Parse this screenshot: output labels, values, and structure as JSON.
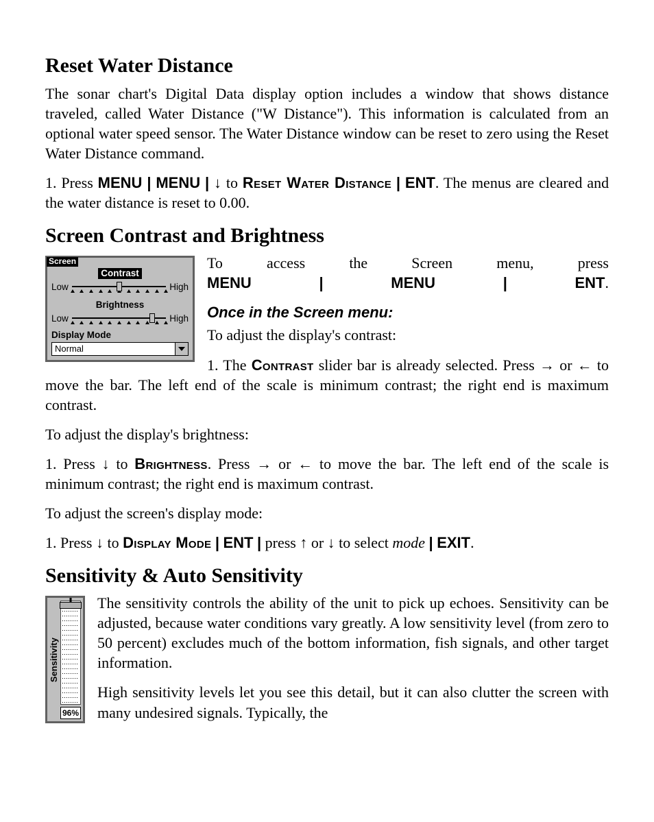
{
  "sec1": {
    "heading": "Reset Water Distance",
    "para1": "The sonar chart's Digital Data display option includes a window that shows distance traveled, called Water Distance (\"W Distance\"). This information is calculated from an optional water speed sensor. The Water Distance window can be reset to zero using the Reset Water Distance command.",
    "step1_pre": "1.  Press ",
    "menu": "MENU",
    "pipe": "|",
    "arrow_down": "↓",
    "to": " to ",
    "reset_wd": "Reset Water Distance",
    "ent": "ENT",
    "step1_post": ". The menus are cleared and the water distance is reset to 0.00."
  },
  "sec2": {
    "heading": "Screen Contrast and Brightness",
    "access_pre": "To access the Screen menu, press ",
    "period": ".",
    "once": "Once in the Screen menu:",
    "adj_contrast": "To adjust the display's contrast:",
    "c_step_a": "1. The ",
    "contrast_sc": "Contrast",
    "c_step_b": " slider bar is already selected. Press ",
    "arrow_right": "→",
    "or": " or ",
    "arrow_left": "←",
    "c_step_c": " to move the bar. The left end of the scale is minimum contrast; the right end is maximum contrast.",
    "adj_bright": "To adjust the display's brightness:",
    "b_step_a": "1. Press ",
    "b_step_to": " to ",
    "brightness_sc": "Brightness",
    "b_step_b": ". Press ",
    "b_step_c": " to move the bar. The left end of the scale is minimum contrast; the right end is maximum contrast.",
    "adj_mode": "To adjust the screen's display mode:",
    "m_step_a": "1. Press ",
    "display_mode_sc": "Display Mode",
    "m_press": "press ",
    "arrow_up": "↑",
    "m_select": " to select ",
    "mode_word": "mode",
    "exit": "EXIT"
  },
  "screen_menu": {
    "title": "Screen",
    "contrast": {
      "label": "Contrast",
      "low": "Low",
      "high": "High",
      "value": 0.5,
      "tick_count": 11,
      "selected": true,
      "track_color": "#000000",
      "thumb_color": "#bfbfbf"
    },
    "brightness": {
      "label": "Brightness",
      "low": "Low",
      "high": "High",
      "value": 0.85,
      "tick_count": 11,
      "selected": false
    },
    "display_mode": {
      "label": "Display Mode",
      "value": "Normal"
    },
    "colors": {
      "panel_bg": "#bfbfbf",
      "panel_border": "#616161",
      "title_bg": "#000000",
      "title_fg": "#ffffff",
      "text": "#000000"
    }
  },
  "sec3": {
    "heading": "Sensitivity & Auto Sensitivity",
    "para1": "The sensitivity controls the ability of the unit to pick up echoes. Sensitivity can be adjusted, because water conditions vary greatly. A low sensitivity level (from zero to 50 percent) excludes much of the bottom information, fish signals, and other target information.",
    "para2": "High sensitivity levels let you see this detail, but it can also clutter the screen with many undesired signals. Typically, the"
  },
  "sensitivity_ctrl": {
    "label": "Sensitivity",
    "value_pct": 96,
    "value_display": "96%",
    "tick_count": 20,
    "track_bg": "#ffffff",
    "thumb_color": "#b0b0b0"
  }
}
